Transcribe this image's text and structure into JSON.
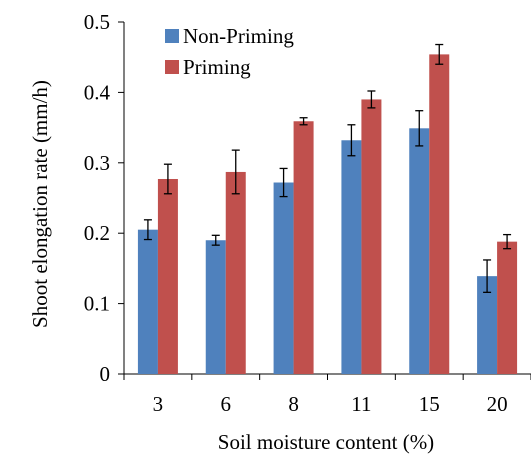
{
  "chart_data": {
    "type": "bar",
    "title": "",
    "xlabel": "Soil moisture content (%)",
    "ylabel": "Shoot elongation rate (mm/h)",
    "categories": [
      "3",
      "6",
      "8",
      "11",
      "15",
      "20"
    ],
    "series": [
      {
        "name": "Non-Priming",
        "color": "#4F81BD",
        "values": [
          0.205,
          0.19,
          0.272,
          0.332,
          0.349,
          0.139
        ],
        "errors": [
          0.014,
          0.007,
          0.02,
          0.022,
          0.025,
          0.023
        ]
      },
      {
        "name": "Priming",
        "color": "#C0504D",
        "values": [
          0.277,
          0.287,
          0.359,
          0.39,
          0.454,
          0.188
        ],
        "errors": [
          0.021,
          0.031,
          0.005,
          0.012,
          0.014,
          0.01
        ]
      }
    ],
    "ylim": [
      0,
      0.5
    ],
    "yticks": [
      "0",
      "0.1",
      "0.2",
      "0.3",
      "0.4",
      "0.5"
    ],
    "grid": false,
    "legend_position": "top-left"
  }
}
